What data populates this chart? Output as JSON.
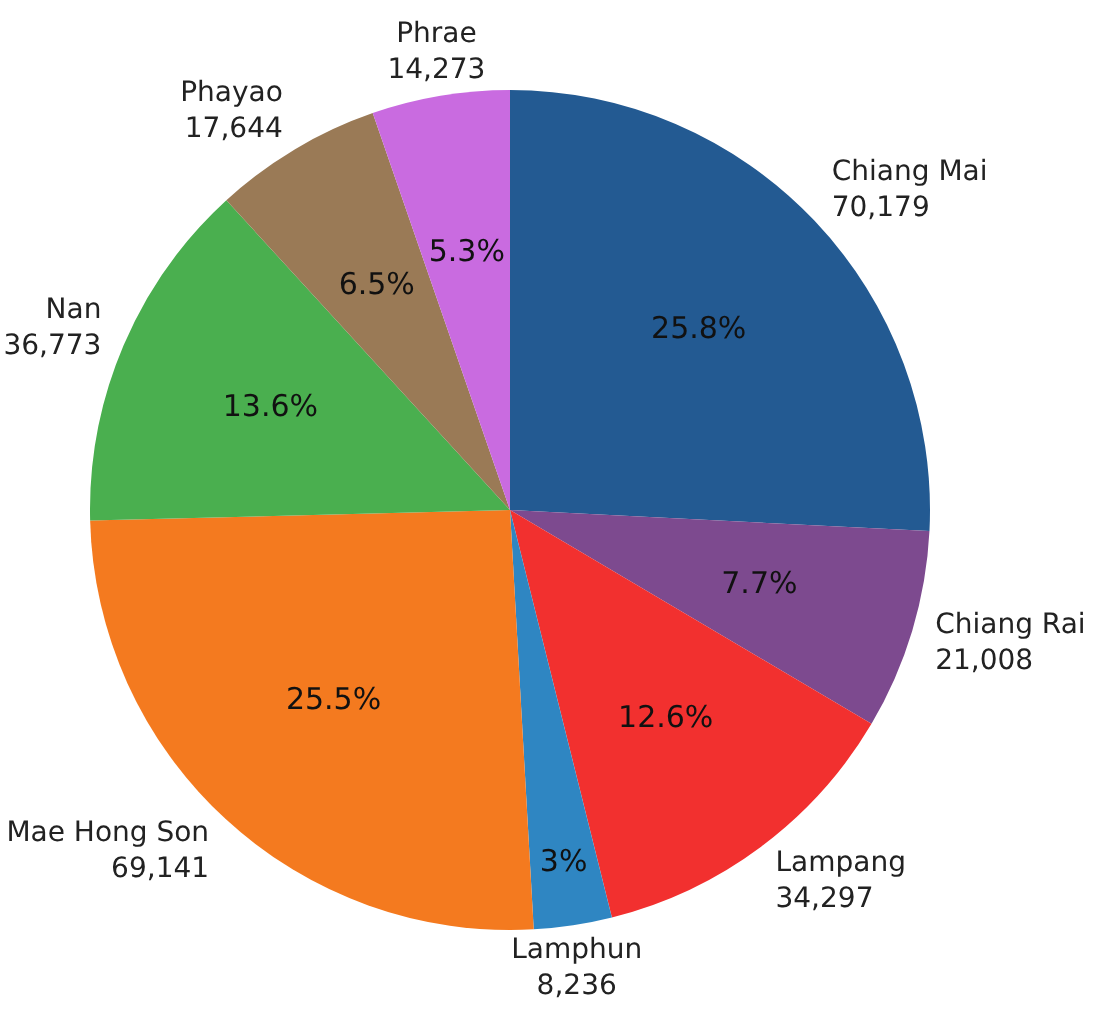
{
  "chart_data": {
    "type": "pie",
    "categories": [
      "Chiang Mai",
      "Chiang Rai",
      "Lampang",
      "Lamphun",
      "Mae Hong Son",
      "Nan",
      "Phayao",
      "Phrae"
    ],
    "values": [
      25.8,
      7.7,
      12.6,
      3,
      25.5,
      13.6,
      6.5,
      5.3
    ],
    "colors": [
      "#235a92",
      "#7d4a8f",
      "#f2302f",
      "#2f86c2",
      "#f47a1f",
      "#4aaf4f",
      "#9a7a56",
      "#c96be0"
    ],
    "value_labels": [
      "25.8%",
      "7.7%",
      "12.6%",
      "3%",
      "25.5%",
      "13.6%",
      "6.5%",
      "5.3%"
    ],
    "annotations": [
      "70,179",
      "21,008",
      "34,297",
      "8,236",
      "69,141",
      "36,773",
      "17,644",
      "14,273"
    ]
  }
}
